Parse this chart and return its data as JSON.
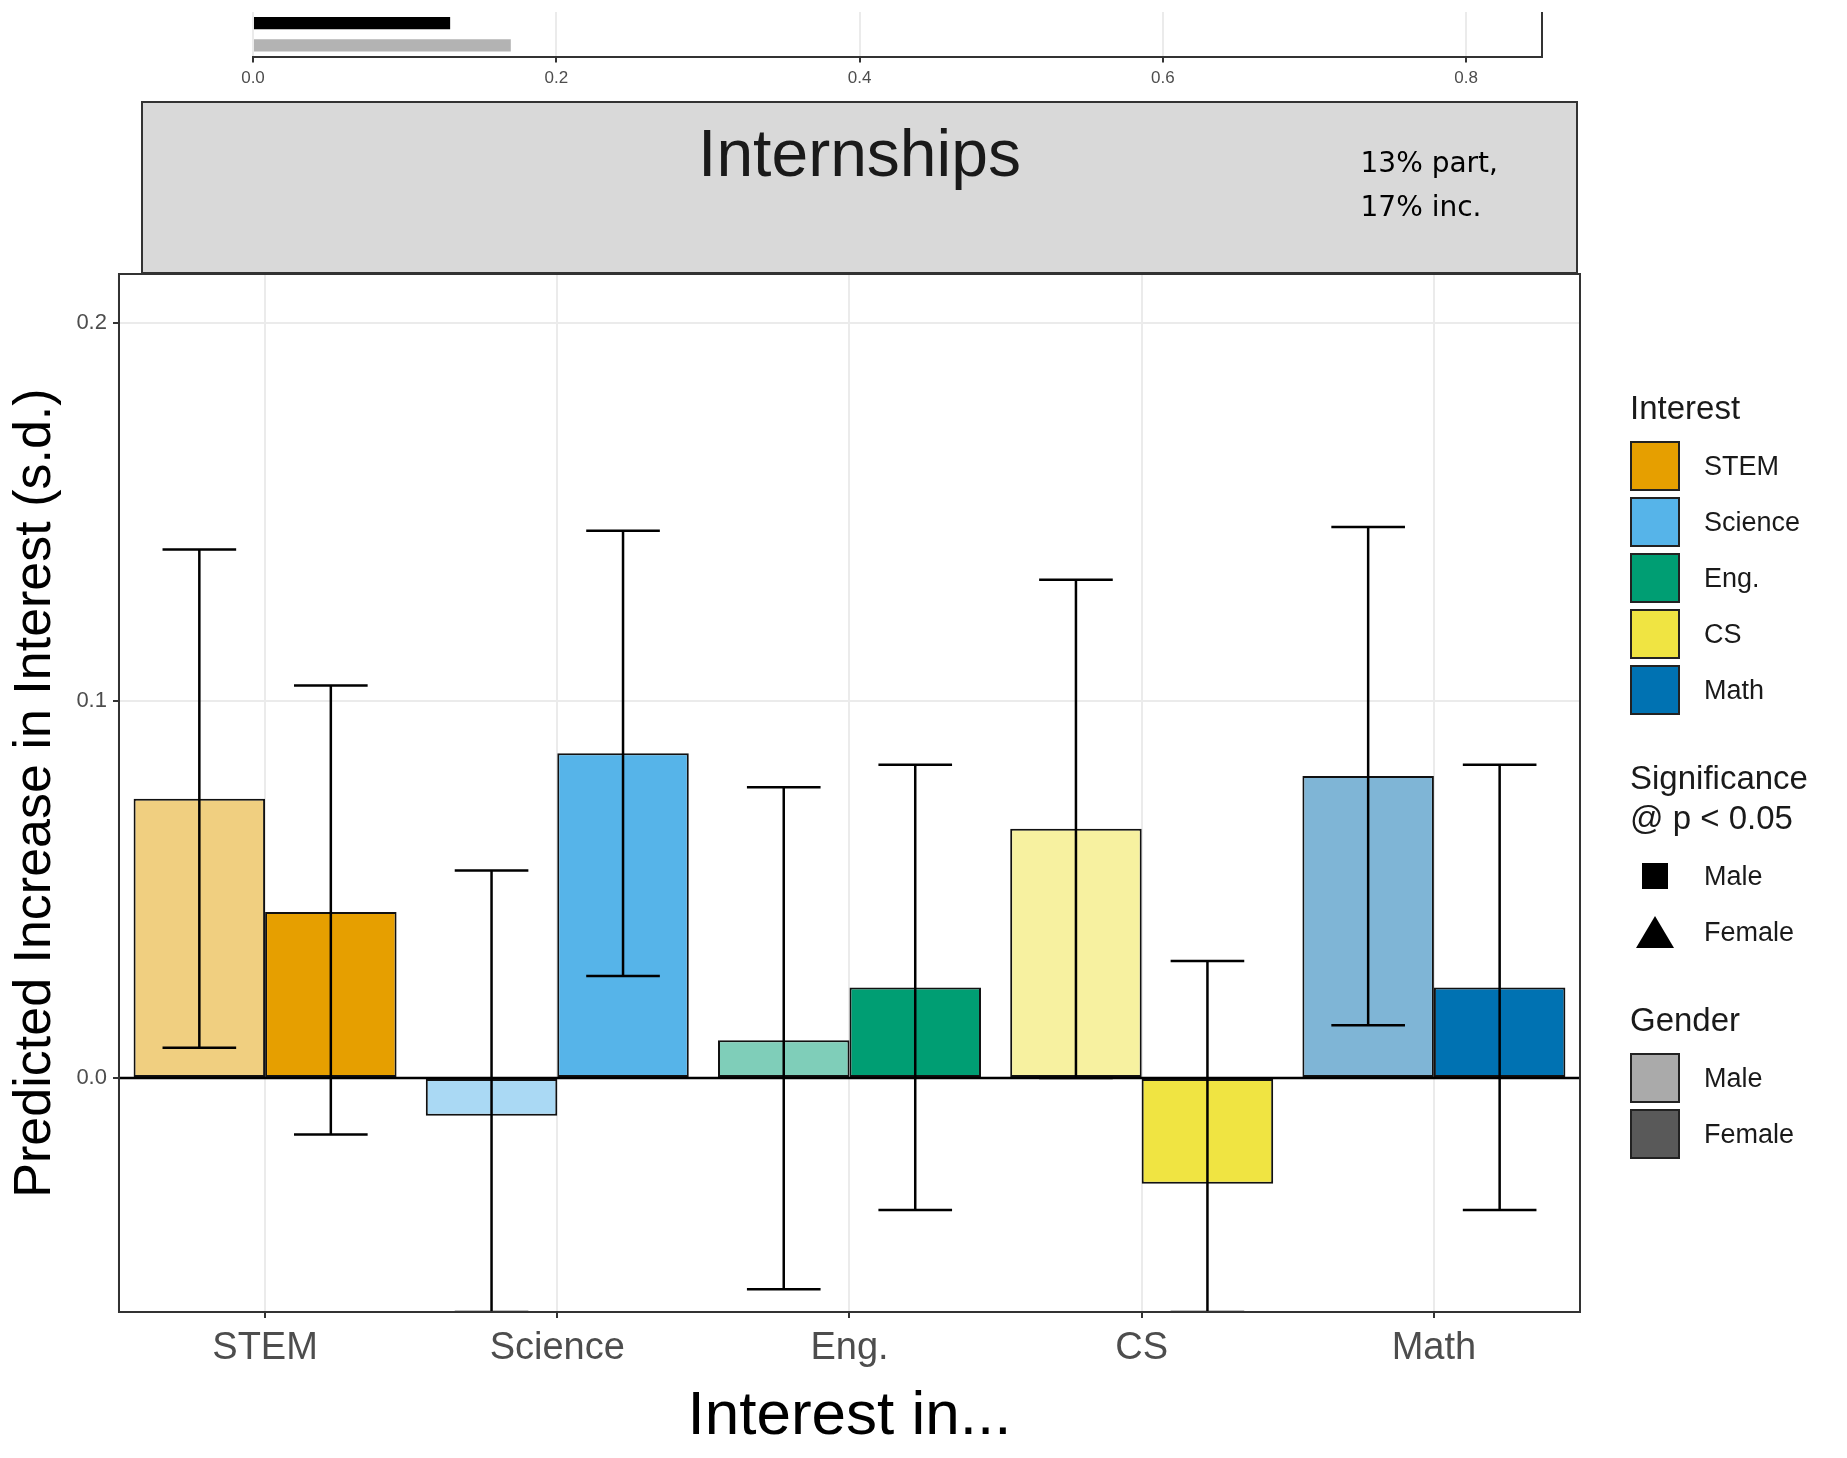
{
  "chart_data": [
    {
      "type": "bar",
      "orientation": "horizontal",
      "categories": [
        null,
        null
      ],
      "values": [
        0.13,
        0.17
      ],
      "colors": [
        "#000000",
        "#b3b3b3"
      ],
      "xlim": [
        0,
        0.85
      ],
      "xticks": [
        {
          "value": 0,
          "label": "0.0"
        },
        {
          "value": 0.2,
          "label": "0.2"
        },
        {
          "value": 0.4,
          "label": "0.4"
        },
        {
          "value": 0.6,
          "label": "0.6"
        },
        {
          "value": 0.8,
          "label": "0.8"
        }
      ],
      "grid": "x",
      "tick_labels": "x"
    },
    {
      "type": "bar",
      "title": "Internships",
      "xlabel": "Interest in...",
      "ylabel": "Predicted Increase in Interest (s.d.)",
      "legend": "right",
      "legend_title": "Gender",
      "annotations": [
        "13% part,\n17% inc.",
        "Interest",
        "Significance\n@ p < 0.05",
        "Male",
        "Female"
      ],
      "categories": [
        "STEM",
        "Science",
        "Eng.",
        "CS",
        "Math"
      ],
      "series": [
        {
          "name": "Male",
          "color": "#aaaaaa",
          "colors": [
            "#f0cf80",
            "#aad9f4",
            "#7fceb9",
            "#f7f1a0",
            "#7fb5d6"
          ],
          "values": [
            0.074,
            -0.01,
            0.01,
            0.066,
            0.08
          ],
          "errors": [
            [
              0.008,
              0.14
            ],
            [
              -0.062,
              0.055
            ],
            [
              -0.056,
              0.077
            ],
            [
              0.0,
              0.132
            ],
            [
              0.014,
              0.146
            ]
          ]
        },
        {
          "name": "Female",
          "color": "#595959",
          "colors": [
            "#e69f00",
            "#56b4e9",
            "#009e73",
            "#f0e442",
            "#0072b2"
          ],
          "values": [
            0.044,
            0.086,
            0.024,
            -0.028,
            0.024
          ],
          "errors": [
            [
              -0.015,
              0.104
            ],
            [
              0.027,
              0.145
            ],
            [
              -0.035,
              0.083
            ],
            [
              -0.062,
              0.031
            ],
            [
              -0.035,
              0.083
            ]
          ]
        }
      ],
      "ylim": [
        -0.062,
        0.213
      ],
      "yticks": [
        {
          "value": 0,
          "label": "0.0"
        },
        {
          "value": 0.1,
          "label": "0.1"
        },
        {
          "value": 0.2,
          "label": "0.2"
        }
      ],
      "grid": true,
      "ref_lines": [
        {
          "axis": "y",
          "value": 0,
          "color": "#000000"
        }
      ]
    }
  ]
}
